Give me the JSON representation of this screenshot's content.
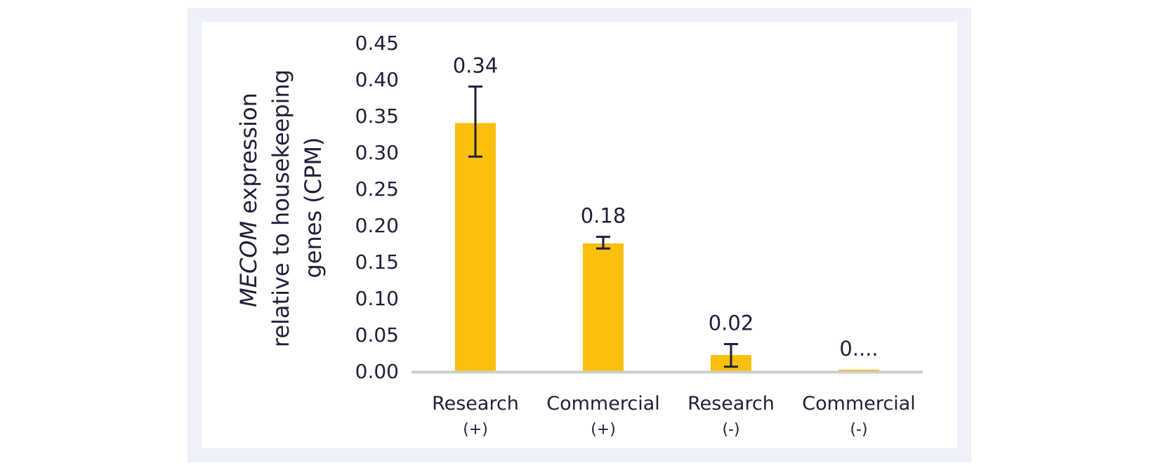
{
  "chart_data": {
    "type": "bar",
    "categories": [
      "Research",
      "Commercial",
      "Research",
      "Commercial"
    ],
    "category_sublabels": [
      "(+)",
      "(+)",
      "(-)",
      "(-)"
    ],
    "values": [
      0.34,
      0.175,
      0.022,
      0.002
    ],
    "error_low": [
      0.294,
      0.168,
      0.006,
      null
    ],
    "error_high": [
      0.39,
      0.184,
      0.037,
      null
    ],
    "data_labels": [
      "0.34",
      "0.18",
      "0.02",
      "0...."
    ],
    "ylabel_italic": "MECOM",
    "ylabel_line1_rest": " expression",
    "ylabel_line2": "relative to housekeeping",
    "ylabel_line3": "genes (CPM)",
    "ylim": [
      0,
      0.45
    ],
    "yticks": [
      "0.00",
      "0.05",
      "0.10",
      "0.15",
      "0.20",
      "0.25",
      "0.30",
      "0.35",
      "0.40",
      "0.45"
    ],
    "grid": false,
    "legend": "none",
    "colors": {
      "bar": "#fbbf0e",
      "axis": "#cccccc",
      "text": "#1f1f3a",
      "frame": "#eef0fa"
    }
  }
}
